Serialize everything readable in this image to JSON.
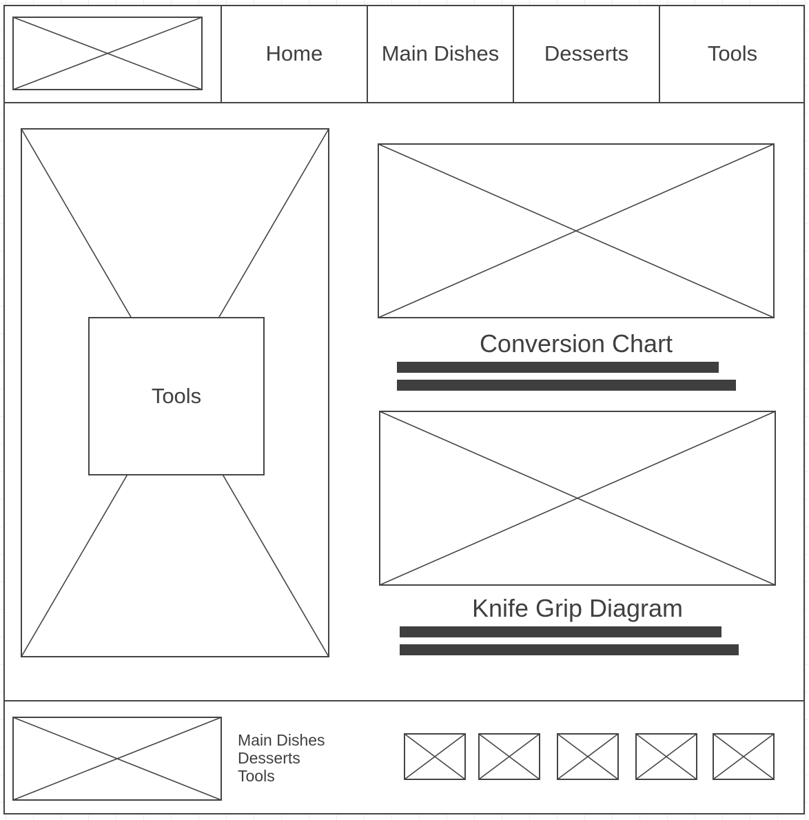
{
  "colors": {
    "stroke": "#444444",
    "text": "#3f3f3f",
    "background": "#ffffff",
    "grid": "#ececec"
  },
  "header": {
    "logo_icon": "image-placeholder-icon",
    "nav": [
      {
        "label": "Home"
      },
      {
        "label": "Main Dishes"
      },
      {
        "label": "Desserts"
      },
      {
        "label": "Tools"
      }
    ]
  },
  "main": {
    "hero": {
      "image_icon": "image-placeholder-icon",
      "label": "Tools"
    },
    "cards": [
      {
        "title": "Conversion Chart",
        "image_icon": "image-placeholder-icon"
      },
      {
        "title": "Knife Grip Diagram",
        "image_icon": "image-placeholder-icon"
      }
    ]
  },
  "footer": {
    "logo_icon": "image-placeholder-icon",
    "links": [
      {
        "label": "Main Dishes"
      },
      {
        "label": "Desserts"
      },
      {
        "label": "Tools"
      }
    ],
    "social_icons": [
      "image-placeholder-icon",
      "image-placeholder-icon",
      "image-placeholder-icon",
      "image-placeholder-icon",
      "image-placeholder-icon"
    ]
  }
}
